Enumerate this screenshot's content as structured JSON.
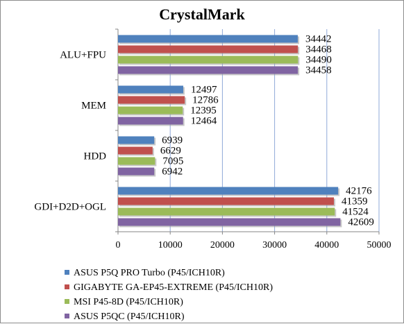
{
  "chart_data": {
    "type": "bar",
    "orientation": "horizontal",
    "title": "CrystalMark",
    "categories": [
      "ALU+FPU",
      "MEM",
      "HDD",
      "GDI+D2D+OGL"
    ],
    "series": [
      {
        "name": "ASUS P5Q PRO Turbo (P45/ICH10R)",
        "color": "#4f81bd",
        "values": [
          34442,
          12497,
          6939,
          42176
        ]
      },
      {
        "name": "GIGABYTE GA-EP45-EXTREME (P45/ICH10R)",
        "color": "#c0504d",
        "values": [
          34468,
          12786,
          6629,
          41359
        ]
      },
      {
        "name": "MSI P45-8D (P45/ICH10R)",
        "color": "#9bbb59",
        "values": [
          34490,
          12395,
          7095,
          41524
        ]
      },
      {
        "name": "ASUS P5QC (P45/ICH10R)",
        "color": "#8064a2",
        "values": [
          34458,
          12464,
          6942,
          42609
        ]
      }
    ],
    "xlim": [
      0,
      50000
    ],
    "xticks": [
      "0",
      "10000",
      "20000",
      "30000",
      "40000",
      "50000"
    ],
    "grid": true,
    "legend_position": "bottom",
    "data_labels": true
  }
}
